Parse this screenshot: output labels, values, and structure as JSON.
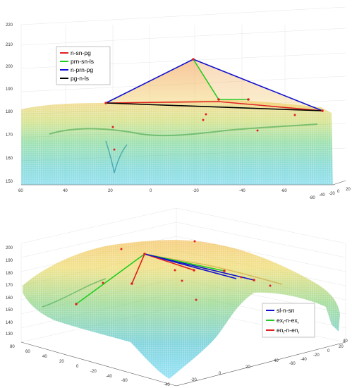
{
  "panels": [
    {
      "id": "top",
      "z_ticks": [
        "150",
        "160",
        "170",
        "180",
        "190",
        "200",
        "210",
        "220"
      ],
      "x_ticks": [
        "60",
        "40",
        "20",
        "0",
        "-20",
        "-40",
        "-60",
        "-80",
        "-40",
        "-20",
        "0",
        "20"
      ],
      "legend": [
        {
          "label": "n-sn-pg",
          "color": "#e02020"
        },
        {
          "label": "prn-sn-ls",
          "color": "#22cc22"
        },
        {
          "label": "n-prn-pg",
          "color": "#1010d0"
        },
        {
          "label": "pg-n-ls",
          "color": "#000000"
        }
      ]
    },
    {
      "id": "bottom",
      "z_ticks": [
        "130",
        "140",
        "150",
        "160",
        "170",
        "180",
        "190",
        "200"
      ],
      "left_ticks": [
        "80",
        "60",
        "40",
        "20",
        "0",
        "-20",
        "-40",
        "-60"
      ],
      "mid_ticks": [
        "-40",
        "-20",
        "0",
        "20",
        "40"
      ],
      "right_ticks": [
        "-60",
        "-40",
        "-20",
        "0",
        "20",
        "40"
      ],
      "legend": [
        {
          "main": "sl-n-sn",
          "color": "#1010d0"
        },
        {
          "main": "ex",
          "sub1": "l",
          "mid": "-n-ex",
          "sub2": "r",
          "color": "#22cc22"
        },
        {
          "main": "en",
          "sub1": "l",
          "mid": "-n-en",
          "sub2": "r",
          "color": "#e02020"
        }
      ]
    }
  ]
}
